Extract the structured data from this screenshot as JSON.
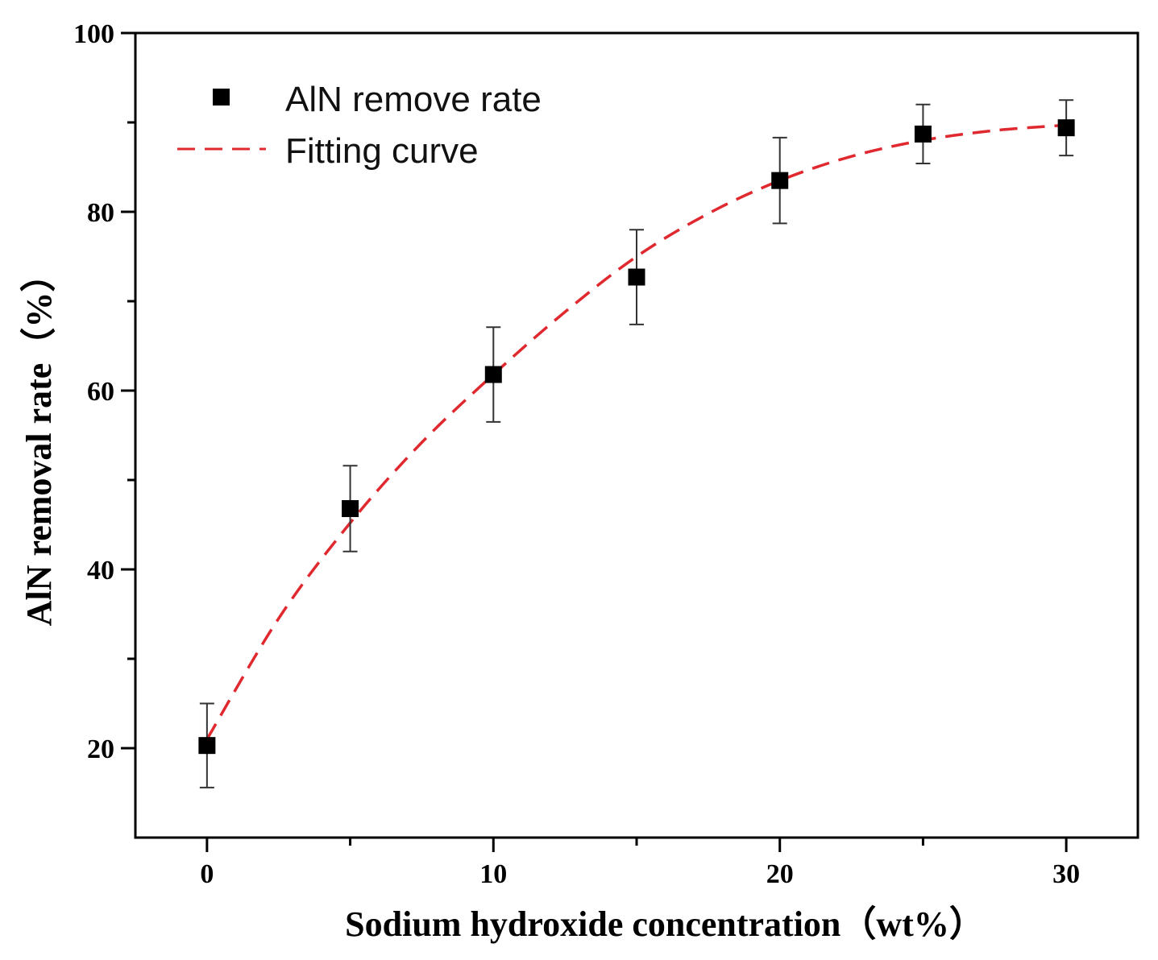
{
  "chart_data": {
    "type": "scatter",
    "title": "",
    "xlabel": "Sodium hydroxide concentration（wt%）",
    "ylabel": "AlN removal rate（%）",
    "xlim": [
      -2.5,
      32.5
    ],
    "ylim": [
      10,
      100
    ],
    "xticks": [
      0,
      10,
      20,
      30
    ],
    "xticks_minor": [
      5,
      15,
      25
    ],
    "yticks": [
      20,
      40,
      60,
      80,
      100
    ],
    "yticks_minor": [
      30,
      50,
      70,
      90
    ],
    "legend_position": "top-left",
    "series": [
      {
        "name": "AlN remove rate",
        "kind": "markers",
        "marker": "square",
        "color": "#000000",
        "x": [
          0,
          5,
          10,
          15,
          20,
          25,
          30
        ],
        "y": [
          20.3,
          46.8,
          61.8,
          72.7,
          83.5,
          88.7,
          89.4
        ],
        "yerr": [
          4.7,
          4.8,
          5.3,
          5.3,
          4.8,
          3.3,
          3.1
        ]
      },
      {
        "name": "Fitting curve",
        "kind": "dashed-line",
        "color": "#e0282f",
        "x": [
          0,
          2.5,
          5,
          7.5,
          10,
          12.5,
          15,
          17.5,
          20,
          22.5,
          25,
          27.5,
          30
        ],
        "y": [
          21.0,
          34.5,
          45.2,
          54.2,
          61.8,
          68.8,
          75.0,
          79.8,
          83.5,
          86.2,
          88.0,
          89.1,
          89.7
        ]
      }
    ]
  }
}
